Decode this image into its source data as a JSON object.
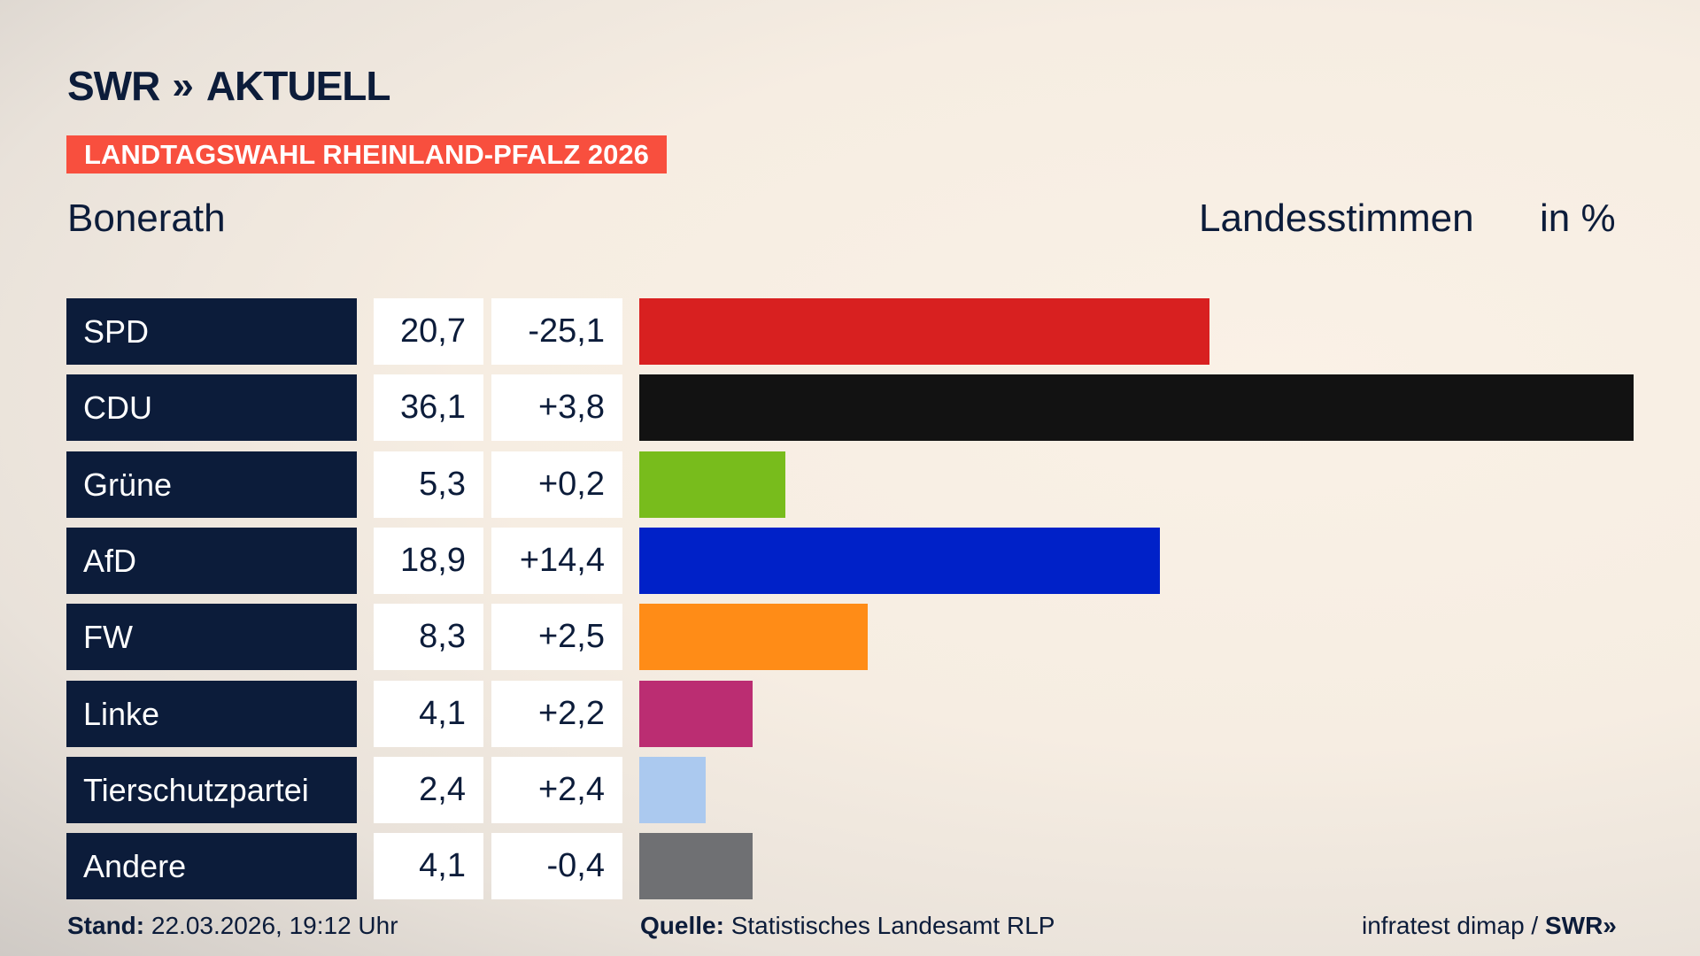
{
  "header": {
    "logo": "SWR AKTUELL",
    "logo_swr": "SWR",
    "logo_arrows": "»",
    "logo_aktuell": "AKTUELL",
    "banner": "LANDTAGSWAHL RHEINLAND-PFALZ 2026",
    "place": "Bonerath",
    "label_votes": "Landesstimmen",
    "label_unit": "in %"
  },
  "footer": {
    "stand_label": "Stand:",
    "stand_value": "22.03.2026, 19:12 Uhr",
    "quelle_label": "Quelle:",
    "quelle_value": "Statistisches Landesamt RLP",
    "credit": "infratest dimap /",
    "credit_logo": "SWR»"
  },
  "chart_data": {
    "type": "bar",
    "orientation": "horizontal",
    "xlabel": "Landesstimmen",
    "unit": "in %",
    "categories": [
      "SPD",
      "CDU",
      "Grüne",
      "AfD",
      "FW",
      "Linke",
      "Tierschutzpartei",
      "Andere"
    ],
    "values": [
      20.7,
      36.1,
      5.3,
      18.9,
      8.3,
      4.1,
      2.4,
      4.1
    ],
    "values_label": [
      "20,7",
      "36,1",
      "5,3",
      "18,9",
      "8,3",
      "4,1",
      "2,4",
      "4,1"
    ],
    "diff_label": [
      "-25,1",
      "+3,8",
      "+0,2",
      "+14,4",
      "+2,5",
      "+2,2",
      "+2,4",
      "-0,4"
    ],
    "colors": [
      "#d82020",
      "#121212",
      "#78bc1c",
      "#0021c8",
      "#ff8c17",
      "#bb2d72",
      "#abc9ef",
      "#6f7073"
    ]
  }
}
